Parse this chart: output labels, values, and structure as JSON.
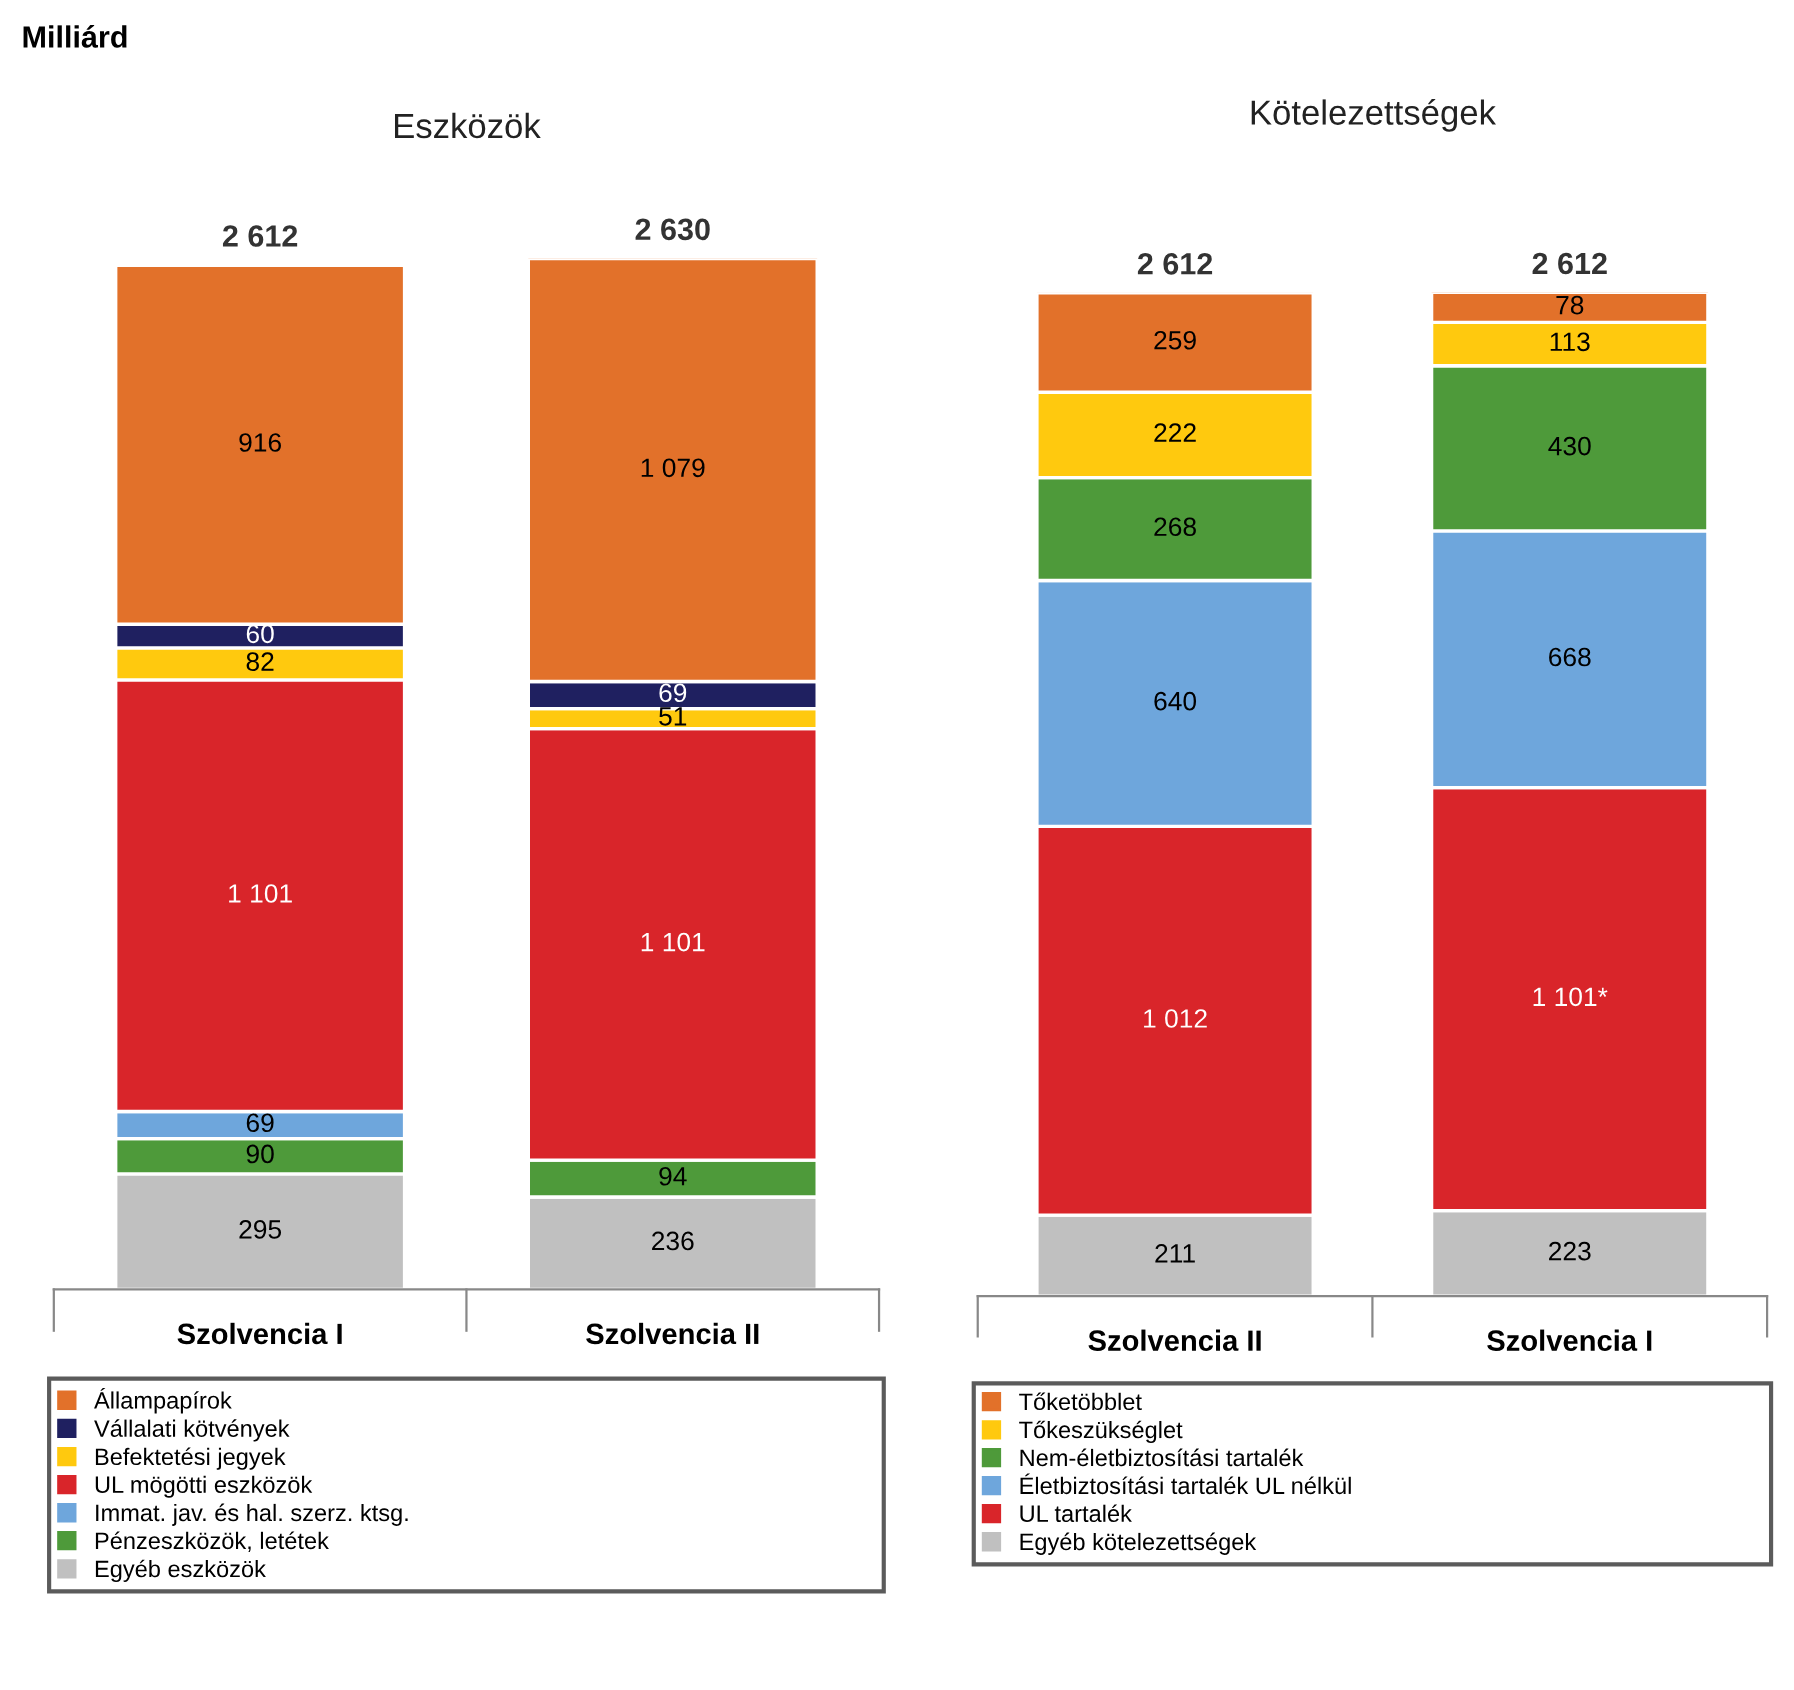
{
  "chart_data": [
    {
      "type": "bar",
      "title": "Eszközök",
      "stacked": true,
      "data_labels": true,
      "legend": "bottom",
      "grid": false,
      "annotations": [
        "Milliárd"
      ],
      "categories": [
        "Szolvencia I",
        "Szolvencia II"
      ],
      "totals": [
        "2 612",
        "2 630"
      ],
      "series": [
        {
          "name": "Egyéb eszközök",
          "color": "#c0c0c0",
          "values": [
            295,
            236
          ],
          "value_labels": [
            "295",
            "236"
          ]
        },
        {
          "name": "Pénzeszközök, letétek",
          "color": "#4e9a3a",
          "values": [
            90,
            94
          ],
          "value_labels": [
            "90",
            "94"
          ]
        },
        {
          "name": "Immat. jav. és hal. szerz. ktsg.",
          "color": "#6ea6dc",
          "values": [
            69,
            null
          ],
          "value_labels": [
            "69",
            null
          ]
        },
        {
          "name": "UL mögötti eszközök",
          "color": "#d9252a",
          "values": [
            1101,
            1101
          ],
          "value_labels": [
            "1 101",
            "1 101"
          ]
        },
        {
          "name": "Befektetési jegyek",
          "color": "#ffc90e",
          "values": [
            82,
            51
          ],
          "value_labels": [
            "82",
            "51"
          ]
        },
        {
          "name": "Vállalati kötvények",
          "color": "#1f2060",
          "values": [
            60,
            69
          ],
          "value_labels": [
            "60",
            "69"
          ]
        },
        {
          "name": "Állampapírok",
          "color": "#e2712a",
          "values": [
            916,
            1079
          ],
          "value_labels": [
            "916",
            "1 079"
          ]
        }
      ]
    },
    {
      "type": "bar",
      "title": "Kötelezettségek",
      "stacked": true,
      "data_labels": true,
      "legend": "bottom",
      "grid": false,
      "categories": [
        "Szolvencia II",
        "Szolvencia I"
      ],
      "totals": [
        "2 612",
        "2 612"
      ],
      "series": [
        {
          "name": "Egyéb kötelezettségek",
          "color": "#c0c0c0",
          "values": [
            211,
            223
          ],
          "value_labels": [
            "211",
            "223"
          ]
        },
        {
          "name": "UL tartalék",
          "color": "#d9252a",
          "values": [
            1012,
            1101
          ],
          "value_labels": [
            "1 012",
            "1 101*"
          ]
        },
        {
          "name": "Életbiztosítási tartalék UL nélkül",
          "color": "#6ea6dc",
          "values": [
            640,
            668
          ],
          "value_labels": [
            "640",
            "668"
          ]
        },
        {
          "name": "Nem-életbiztosítási tartalék",
          "color": "#4e9a3a",
          "values": [
            268,
            430
          ],
          "value_labels": [
            "268",
            "430"
          ]
        },
        {
          "name": "Tőkeszükséglet",
          "color": "#ffc90e",
          "values": [
            222,
            113
          ],
          "value_labels": [
            "222",
            "113"
          ]
        },
        {
          "name": "Tőketöbblet",
          "color": "#e2712a",
          "values": [
            259,
            78
          ],
          "value_labels": [
            "259",
            "78"
          ]
        }
      ]
    }
  ]
}
